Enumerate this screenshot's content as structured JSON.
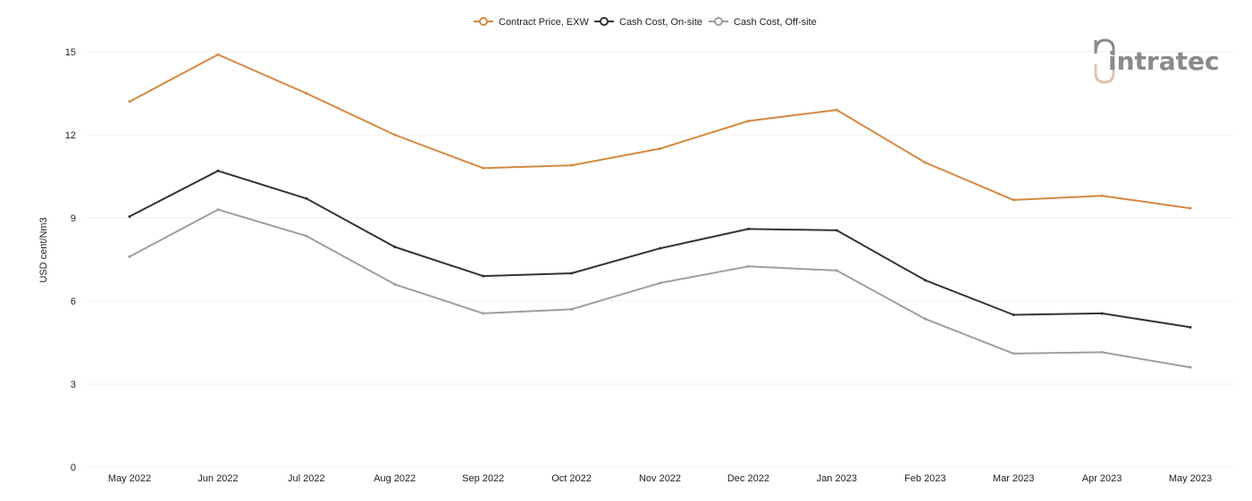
{
  "chart_data": {
    "type": "line",
    "title": "",
    "xlabel": "",
    "ylabel": "USD cent/Nm3",
    "ylim": [
      0,
      15
    ],
    "yticks": [
      0,
      3,
      6,
      9,
      12,
      15
    ],
    "grid": true,
    "legend_position": "top-center",
    "categories": [
      "May 2022",
      "Jun 2022",
      "Jul 2022",
      "Aug 2022",
      "Sep 2022",
      "Oct 2022",
      "Nov 2022",
      "Dec 2022",
      "Jan 2023",
      "Feb 2023",
      "Mar 2023",
      "Apr 2023",
      "May 2023"
    ],
    "series": [
      {
        "name": "Contract Price, EXW",
        "color": "#d4883f",
        "values": [
          13.2,
          14.9,
          13.5,
          12.0,
          10.8,
          10.9,
          11.5,
          12.5,
          12.9,
          11.0,
          9.65,
          9.8,
          9.35
        ]
      },
      {
        "name": "Cash Cost, On-site",
        "color": "#333333",
        "values": [
          9.05,
          10.7,
          9.7,
          7.95,
          6.9,
          7.0,
          7.9,
          8.6,
          8.55,
          6.75,
          5.5,
          5.55,
          5.05
        ]
      },
      {
        "name": "Cash Cost, Off-site",
        "color": "#9e9e9e",
        "values": [
          7.6,
          9.3,
          8.35,
          6.6,
          5.55,
          5.7,
          6.65,
          7.25,
          7.1,
          5.35,
          4.1,
          4.15,
          3.6
        ]
      }
    ]
  },
  "logo": {
    "text": "intratec",
    "colors": [
      "#8a8a8a",
      "#e0c3a6"
    ]
  }
}
